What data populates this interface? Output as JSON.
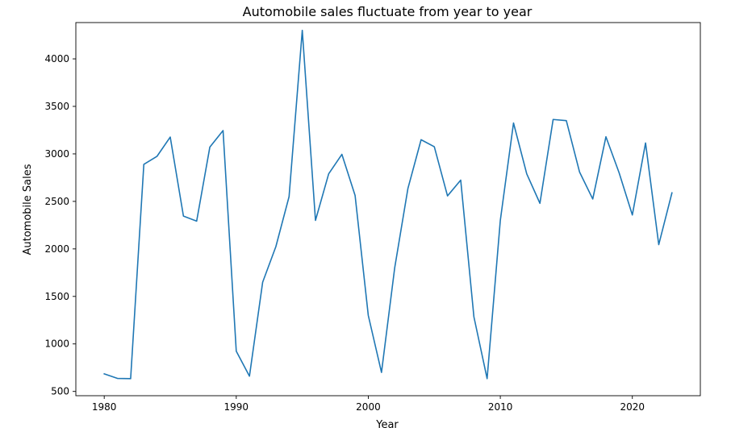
{
  "chart_data": {
    "type": "line",
    "title": "Automobile sales fluctuate from year to year",
    "xlabel": "Year",
    "ylabel": "Automobile Sales",
    "xlim": [
      1977.85,
      1925.15
    ],
    "ylim": [
      455,
      4382
    ],
    "grid": false,
    "x_ticks": [
      1980,
      1990,
      2000,
      2010,
      2020
    ],
    "y_ticks": [
      500,
      1000,
      1500,
      2000,
      2500,
      3000,
      3500,
      4000
    ],
    "series": [
      {
        "color": "#1f77b4",
        "x": [
          1980,
          1981,
          1982,
          1983,
          1984,
          1985,
          1986,
          1987,
          1988,
          1989,
          1990,
          1991,
          1992,
          1993,
          1994,
          1995,
          1996,
          1997,
          1998,
          1999,
          2000,
          2001,
          2002,
          2003,
          2004,
          2005,
          2006,
          2007,
          2008,
          2009,
          2010,
          2011,
          2012,
          2013,
          2014,
          2015,
          2016,
          2017,
          2018,
          2019,
          2020,
          2021,
          2022,
          2023
        ],
        "y": [
          685,
          637,
          635,
          2890,
          2975,
          3177,
          2345,
          2292,
          3072,
          3246,
          924,
          661,
          1650,
          2024,
          2550,
          4300,
          2300,
          2790,
          2995,
          2563,
          1300,
          700,
          1800,
          2635,
          3149,
          3075,
          2558,
          2724,
          1285,
          635,
          2300,
          3325,
          2790,
          2480,
          3362,
          3350,
          2810,
          2525,
          3180,
          2800,
          2357,
          3115,
          2045,
          2590
        ]
      }
    ]
  }
}
